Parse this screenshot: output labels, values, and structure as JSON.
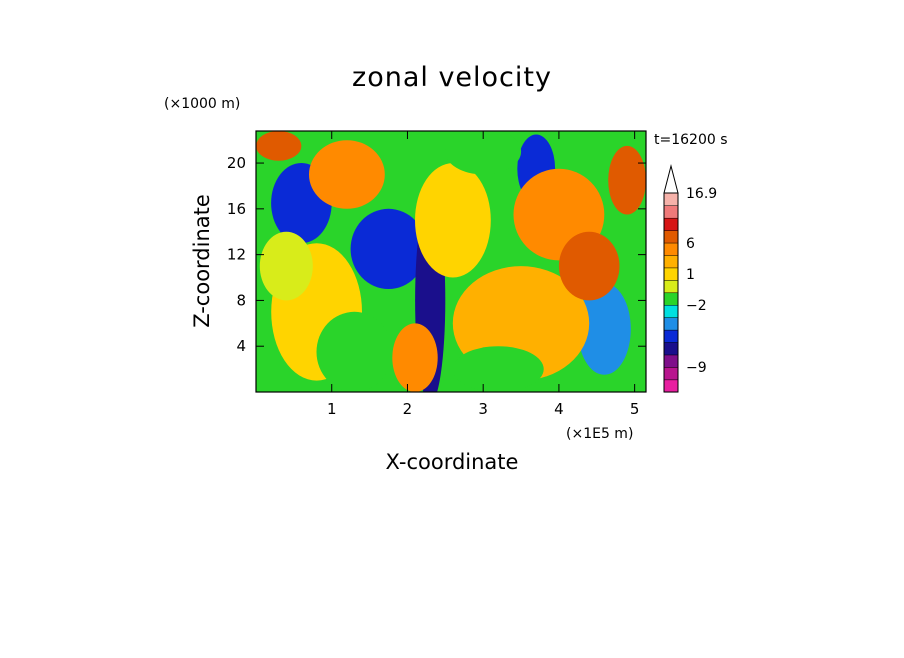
{
  "chart_data": {
    "type": "heatmap",
    "title": "zonal velocity",
    "xlabel": "X-coordinate",
    "ylabel": "Z-coordinate",
    "x_scale_label": "(×1E5 m)",
    "y_scale_label": "(×1000 m)",
    "time_label": "t=16200 s",
    "xlim": [
      0,
      5.15
    ],
    "ylim": [
      0,
      22.8
    ],
    "x_ticks": [
      1,
      2,
      3,
      4,
      5
    ],
    "x_tick_labels": [
      "1",
      "2",
      "3",
      "4",
      "5"
    ],
    "y_ticks": [
      4,
      8,
      12,
      16,
      20
    ],
    "y_tick_labels": [
      "4",
      "8",
      "12",
      "16",
      "20"
    ],
    "colorbar": {
      "levels_bottom_to_top": [
        {
          "color": "#e81fa0"
        },
        {
          "color": "#b8158e"
        },
        {
          "color": "#7f0f8a"
        },
        {
          "color": "#1a0f8c"
        },
        {
          "color": "#0a2ad6"
        },
        {
          "color": "#1f8ee6"
        },
        {
          "color": "#00e0e0"
        },
        {
          "color": "#2ad42a"
        },
        {
          "color": "#d8ec1a"
        },
        {
          "color": "#ffd400"
        },
        {
          "color": "#ffb000"
        },
        {
          "color": "#ff8a00"
        },
        {
          "color": "#e05a00"
        },
        {
          "color": "#d61515"
        },
        {
          "color": "#f07a7a"
        },
        {
          "color": "#f6b2aa"
        }
      ],
      "tick_labels": [
        {
          "value": "16.9",
          "level_index": 16
        },
        {
          "value": "6",
          "level_index": 12
        },
        {
          "value": "1",
          "level_index": 9.5
        },
        {
          "value": "-2",
          "level_index": 7
        },
        {
          "value": "-9",
          "level_index": 2
        }
      ],
      "overflow_arrow": true
    },
    "field_regions": [
      {
        "x": 0.6,
        "z": 16.5,
        "rx": 0.4,
        "rz": 3.5,
        "level": 4
      },
      {
        "x": 1.75,
        "z": 12.5,
        "rx": 0.5,
        "rz": 3.5,
        "level": 4
      },
      {
        "x": 2.3,
        "z": 8,
        "rx": 0.2,
        "rz": 9,
        "level": 3
      },
      {
        "x": 3.7,
        "z": 19.5,
        "rx": 0.25,
        "rz": 3,
        "level": 4
      },
      {
        "x": 4.6,
        "z": 5.5,
        "rx": 0.35,
        "rz": 4,
        "level": 5
      },
      {
        "x": 2.6,
        "z": 15,
        "rx": 0.5,
        "rz": 5,
        "level": 9
      },
      {
        "x": 4.0,
        "z": 15.5,
        "rx": 0.6,
        "rz": 4,
        "level": 11
      },
      {
        "x": 3.5,
        "z": 6,
        "rx": 0.9,
        "rz": 5,
        "level": 10
      },
      {
        "x": 0.8,
        "z": 7,
        "rx": 0.6,
        "rz": 6,
        "level": 9
      },
      {
        "x": 1.2,
        "z": 19,
        "rx": 0.5,
        "rz": 3,
        "level": 11
      },
      {
        "x": 4.9,
        "z": 18.5,
        "rx": 0.25,
        "rz": 3,
        "level": 12
      },
      {
        "x": 3.2,
        "z": 2,
        "rx": 0.6,
        "rz": 2,
        "level": 7
      },
      {
        "x": 0.3,
        "z": 21.5,
        "rx": 0.3,
        "rz": 1.3,
        "level": 12
      },
      {
        "x": 2.1,
        "z": 3,
        "rx": 0.3,
        "rz": 3,
        "level": 11
      },
      {
        "x": 4.4,
        "z": 11,
        "rx": 0.4,
        "rz": 3,
        "level": 12
      },
      {
        "x": 0.4,
        "z": 11,
        "rx": 0.35,
        "rz": 3,
        "level": 8
      },
      {
        "x": 1.3,
        "z": 3.5,
        "rx": 0.5,
        "rz": 3.5,
        "level": 7
      },
      {
        "x": 3.0,
        "z": 21,
        "rx": 0.5,
        "rz": 2,
        "level": 7
      }
    ]
  }
}
